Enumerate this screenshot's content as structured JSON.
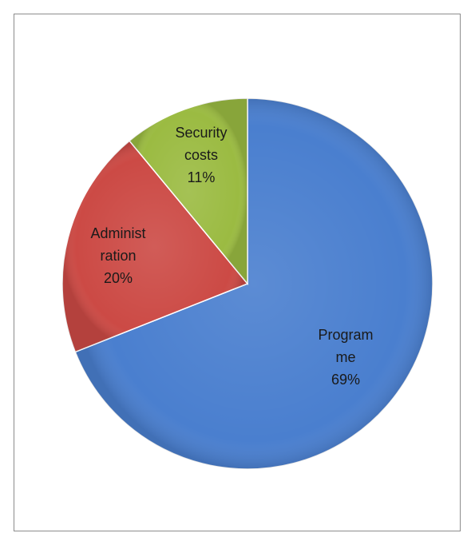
{
  "chart_data": {
    "type": "pie",
    "title": "",
    "start_angle_deg": 0,
    "direction": "clockwise",
    "slices": [
      {
        "name": "Programme",
        "label_lines": [
          "Program",
          "me",
          "69%"
        ],
        "value": 69,
        "color": "#4a7fcf"
      },
      {
        "name": "Administration",
        "label_lines": [
          "Administ",
          "ration",
          "20%"
        ],
        "value": 20,
        "color": "#cc4a45"
      },
      {
        "name": "Security costs",
        "label_lines": [
          "Security",
          "costs",
          "11%"
        ],
        "value": 11,
        "color": "#9bbb42"
      }
    ],
    "legend": "none",
    "data_labels": "inside"
  }
}
